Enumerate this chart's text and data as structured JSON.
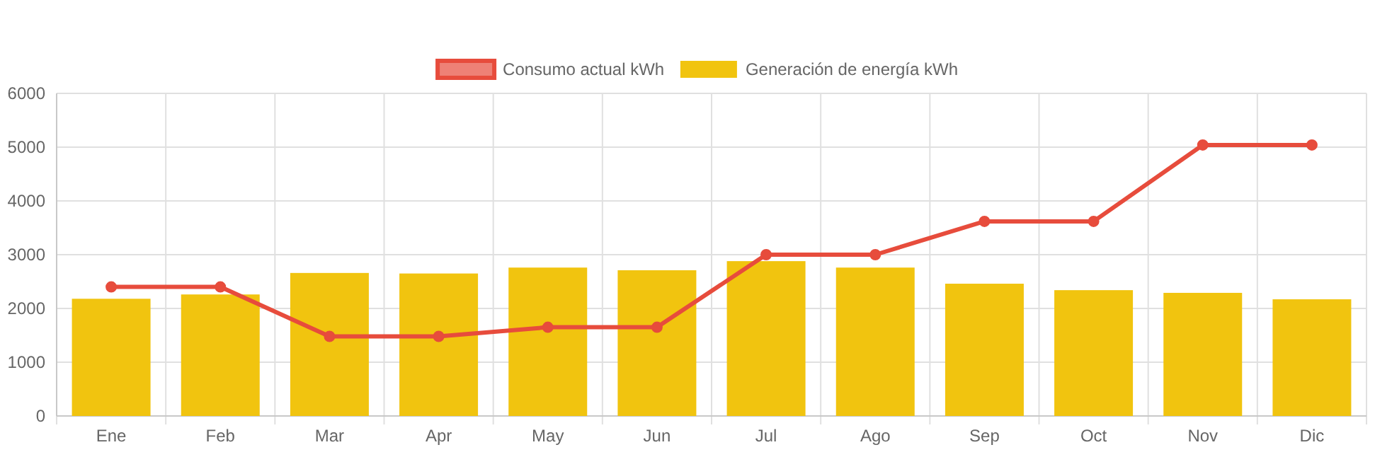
{
  "chart_data": {
    "type": "bar",
    "categories": [
      "Ene",
      "Feb",
      "Mar",
      "Apr",
      "May",
      "Jun",
      "Jul",
      "Ago",
      "Sep",
      "Oct",
      "Nov",
      "Dic"
    ],
    "series": [
      {
        "name": "Consumo actual kWh",
        "type": "line",
        "color": "#e74c3c",
        "values": [
          2400,
          2400,
          1480,
          1480,
          1650,
          1650,
          3000,
          3000,
          3620,
          3620,
          5040,
          5040
        ]
      },
      {
        "name": "Generación de energía kWh",
        "color": "#f1c40f",
        "values": [
          2180,
          2260,
          2660,
          2650,
          2760,
          2710,
          2880,
          2760,
          2460,
          2340,
          2290,
          2170
        ]
      }
    ],
    "ylim": [
      0,
      6000
    ],
    "yticks": [
      0,
      1000,
      2000,
      3000,
      4000,
      5000,
      6000
    ],
    "grid": true,
    "legend": "top",
    "marker": "circle"
  }
}
